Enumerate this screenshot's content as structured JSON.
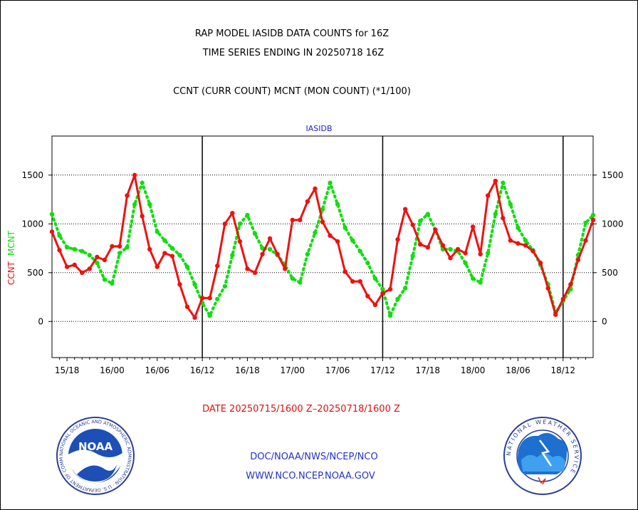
{
  "header": {
    "title_line1": "RAP MODEL IASIDB DATA COUNTS for 16Z",
    "title_line2": "TIME SERIES ENDING IN 20250718 16Z",
    "title_line3": "CCNT (CURR COUNT) MCNT (MON COUNT) (*1/100)"
  },
  "footer": {
    "date_range": "DATE 20250715/1600 Z–20250718/1600 Z",
    "credit_line1": "DOC/NOAA/NWS/NCEP/NCO",
    "credit_line2": "WWW.NCO.NCEP.NOAA.GOV"
  },
  "logos": {
    "left": "noaa-emblem",
    "right": "national-weather-service-emblem",
    "left_text": "NOAA",
    "left_ring_text": "NATIONAL OCEANIC AND ATMOSPHERIC ADMINISTRATION · U.S. DEPARTMENT OF COMMERCE",
    "right_ring_text": "NATIONAL WEATHER SERVICE"
  },
  "colors": {
    "ccnt": "#ee1111",
    "mcnt": "#11dd11",
    "label_blue": "#2222cc"
  },
  "chart_data": {
    "type": "line",
    "subtitle": "IASIDB",
    "ylabel_ccnt": "CCNT",
    "ylabel_mcnt": "MCNT",
    "ylim": [
      -370,
      1900
    ],
    "yticks": [
      0,
      500,
      1000,
      1500
    ],
    "xlim": [
      0,
      72
    ],
    "x_unit": "hours since 20250715/1600 Z",
    "xtick_labels": [
      {
        "x": 2,
        "label": "15/18"
      },
      {
        "x": 8,
        "label": "16/00"
      },
      {
        "x": 14,
        "label": "16/06"
      },
      {
        "x": 20,
        "label": "16/12"
      },
      {
        "x": 26,
        "label": "16/18"
      },
      {
        "x": 32,
        "label": "17/00"
      },
      {
        "x": 38,
        "label": "17/06"
      },
      {
        "x": 44,
        "label": "17/12"
      },
      {
        "x": 50,
        "label": "17/18"
      },
      {
        "x": 56,
        "label": "18/00"
      },
      {
        "x": 62,
        "label": "18/06"
      },
      {
        "x": 68,
        "label": "18/12"
      }
    ],
    "day_separators": [
      20,
      44,
      68
    ],
    "grid": "dotted horizontal at y ticks",
    "series": [
      {
        "name": "CCNT",
        "color": "#ee1111",
        "values": [
          920,
          730,
          560,
          580,
          500,
          540,
          660,
          630,
          770,
          770,
          1290,
          1500,
          1080,
          740,
          560,
          700,
          670,
          380,
          150,
          40,
          240,
          240,
          570,
          1000,
          1110,
          820,
          540,
          500,
          690,
          850,
          690,
          540,
          1040,
          1040,
          1230,
          1360,
          1020,
          880,
          820,
          510,
          410,
          410,
          260,
          170,
          290,
          330,
          840,
          1150,
          990,
          790,
          760,
          940,
          780,
          650,
          740,
          700,
          970,
          690,
          1290,
          1440,
          1060,
          830,
          800,
          780,
          720,
          600,
          340,
          70,
          230,
          380,
          630,
          830,
          1040
        ]
      },
      {
        "name": "MCNT",
        "color": "#11dd11",
        "values": [
          1100,
          880,
          760,
          740,
          720,
          680,
          600,
          430,
          390,
          700,
          760,
          1200,
          1420,
          1200,
          920,
          830,
          750,
          680,
          560,
          380,
          190,
          60,
          230,
          360,
          680,
          1000,
          1090,
          900,
          750,
          740,
          680,
          580,
          440,
          400,
          690,
          910,
          1150,
          1420,
          1200,
          960,
          830,
          720,
          600,
          440,
          330,
          60,
          230,
          340,
          670,
          1030,
          1100,
          940,
          740,
          740,
          720,
          600,
          440,
          400,
          700,
          1100,
          1420,
          1200,
          960,
          830,
          730,
          580,
          380,
          90,
          210,
          330,
          680,
          1010,
          1090
        ]
      }
    ]
  }
}
